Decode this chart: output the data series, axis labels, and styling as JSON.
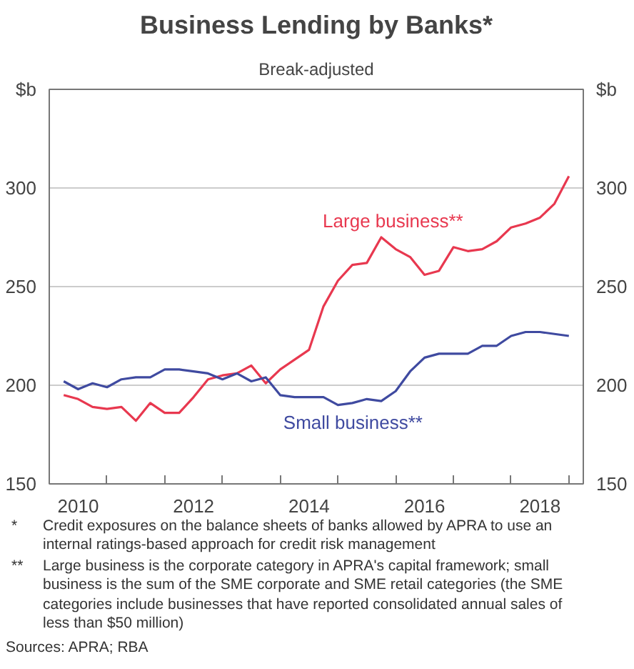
{
  "chart_data": {
    "type": "line",
    "title": "Business Lending by Banks*",
    "subtitle": "Break-adjusted",
    "ylabel": "$b",
    "y2label": "$b",
    "x": [
      2010.25,
      2010.5,
      2010.75,
      2011.0,
      2011.25,
      2011.5,
      2011.75,
      2012.0,
      2012.25,
      2012.5,
      2012.75,
      2013.0,
      2013.25,
      2013.5,
      2013.75,
      2014.0,
      2014.25,
      2014.5,
      2014.75,
      2015.0,
      2015.25,
      2015.5,
      2015.75,
      2016.0,
      2016.25,
      2016.5,
      2016.75,
      2017.0,
      2017.25,
      2017.5,
      2017.75,
      2018.0,
      2018.25,
      2018.5,
      2018.75,
      2019.0
    ],
    "series": [
      {
        "name": "Large business**",
        "color": "#e8384f",
        "values": [
          195,
          193,
          189,
          188,
          189,
          182,
          191,
          186,
          186,
          194,
          203,
          205,
          206,
          210,
          201,
          208,
          213,
          218,
          240,
          253,
          261,
          262,
          275,
          269,
          265,
          256,
          258,
          270,
          268,
          269,
          273,
          280,
          282,
          285,
          292,
          306
        ]
      },
      {
        "name": "Small business**",
        "color": "#3f4aa0",
        "values": [
          202,
          198,
          201,
          199,
          203,
          204,
          204,
          208,
          208,
          207,
          206,
          203,
          206,
          202,
          204,
          195,
          194,
          194,
          194,
          190,
          191,
          193,
          192,
          197,
          207,
          214,
          216,
          216,
          216,
          220,
          220,
          225,
          227,
          227,
          226,
          225
        ]
      }
    ],
    "xlim": [
      2010,
      2019.25
    ],
    "xticks": [
      {
        "value": 2010.5,
        "label": "2010"
      },
      {
        "value": 2012.5,
        "label": "2012"
      },
      {
        "value": 2014.5,
        "label": "2014"
      },
      {
        "value": 2016.5,
        "label": "2016"
      },
      {
        "value": 2018.5,
        "label": "2018"
      },
      {
        "value": 2011,
        "label": null
      },
      {
        "value": 2012,
        "label": null
      },
      {
        "value": 2013,
        "label": null
      },
      {
        "value": 2014,
        "label": null
      },
      {
        "value": 2015,
        "label": null
      },
      {
        "value": 2016,
        "label": null
      },
      {
        "value": 2017,
        "label": null
      },
      {
        "value": 2018,
        "label": null
      },
      {
        "value": 2019,
        "label": null
      }
    ],
    "ylim": [
      150,
      350
    ],
    "yticks": [
      150,
      200,
      250,
      300
    ],
    "y2lim": [
      150,
      350
    ],
    "y2ticks": [
      150,
      200,
      250,
      300
    ],
    "grid": "y",
    "marker": "none",
    "line_style": "solid",
    "annotations": [
      "* Credit exposures on the balance sheets of banks allowed by APRA to use an internal ratings-based approach for credit risk management",
      "** Large business is the corporate category in APRA's capital framework; small business is the sum of the SME corporate and SME retail categories (the SME categories include businesses that have reported consolidated annual sales of less than $50 million)",
      "Sources: APRA; RBA"
    ]
  }
}
